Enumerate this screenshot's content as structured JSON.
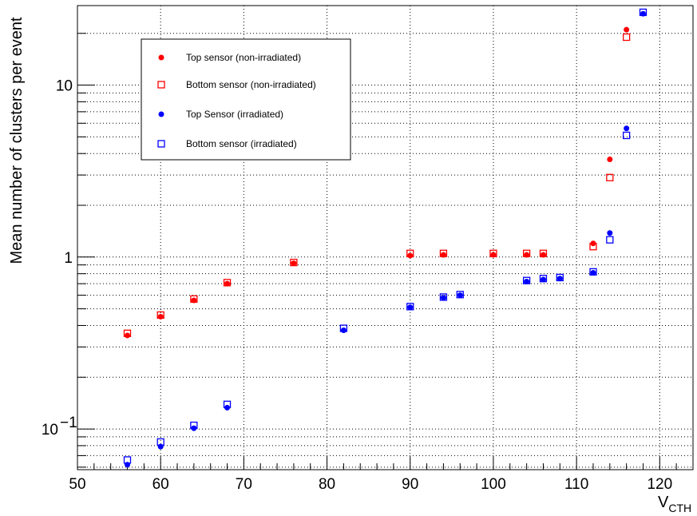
{
  "chart_data": {
    "type": "scatter",
    "title": "",
    "xlabel": "V",
    "xlabel_subscript": "CTH",
    "ylabel": "Mean number of clusters per event",
    "xlim": [
      50,
      124
    ],
    "ylim": [
      0.058,
      29
    ],
    "yscale": "log",
    "grid": true,
    "legend_position": "top-left",
    "x_ticks": [
      {
        "value": 50,
        "label": "50"
      },
      {
        "value": 60,
        "label": "60"
      },
      {
        "value": 70,
        "label": "70"
      },
      {
        "value": 80,
        "label": "80"
      },
      {
        "value": 90,
        "label": "90"
      },
      {
        "value": 100,
        "label": "100"
      },
      {
        "value": 110,
        "label": "110"
      },
      {
        "value": 120,
        "label": "120"
      }
    ],
    "y_ticks": [
      {
        "value": 0.1,
        "label": "10",
        "exponent": "−1"
      },
      {
        "value": 1,
        "label": "1",
        "exponent": ""
      },
      {
        "value": 10,
        "label": "10",
        "exponent": ""
      }
    ],
    "series": [
      {
        "name": "Top sensor (non-irradiated)",
        "color": "#ff0000",
        "marker": "filled-circle",
        "points": [
          [
            56,
            0.35
          ],
          [
            60,
            0.45
          ],
          [
            64,
            0.56
          ],
          [
            68,
            0.7
          ],
          [
            76,
            0.92
          ],
          [
            90,
            1.02
          ],
          [
            94,
            1.03
          ],
          [
            100,
            1.03
          ],
          [
            104,
            1.03
          ],
          [
            106,
            1.03
          ],
          [
            112,
            1.2
          ],
          [
            114,
            3.7
          ],
          [
            116,
            21.0
          ]
        ]
      },
      {
        "name": "Bottom sensor (non-irradiated)",
        "color": "#ff0000",
        "marker": "open-square",
        "points": [
          [
            56,
            0.36
          ],
          [
            60,
            0.46
          ],
          [
            64,
            0.57
          ],
          [
            68,
            0.71
          ],
          [
            76,
            0.93
          ],
          [
            90,
            1.05
          ],
          [
            94,
            1.05
          ],
          [
            100,
            1.05
          ],
          [
            104,
            1.05
          ],
          [
            106,
            1.05
          ],
          [
            112,
            1.15
          ],
          [
            114,
            2.9
          ],
          [
            116,
            19.0
          ]
        ]
      },
      {
        "name": "Top Sensor (irradiated)",
        "color": "#0000ff",
        "marker": "filled-circle",
        "points": [
          [
            56,
            0.062
          ],
          [
            60,
            0.079
          ],
          [
            64,
            0.101
          ],
          [
            68,
            0.133
          ],
          [
            82,
            0.375
          ],
          [
            90,
            0.51
          ],
          [
            94,
            0.58
          ],
          [
            96,
            0.6
          ],
          [
            104,
            0.72
          ],
          [
            106,
            0.74
          ],
          [
            108,
            0.75
          ],
          [
            112,
            0.81
          ],
          [
            114,
            1.38
          ],
          [
            116,
            5.6
          ],
          [
            118,
            26.0
          ]
        ]
      },
      {
        "name": "Bottom sensor (irradiated)",
        "color": "#0000ff",
        "marker": "open-square",
        "points": [
          [
            56,
            0.066
          ],
          [
            60,
            0.084
          ],
          [
            64,
            0.105
          ],
          [
            68,
            0.139
          ],
          [
            82,
            0.385
          ],
          [
            90,
            0.515
          ],
          [
            94,
            0.585
          ],
          [
            96,
            0.605
          ],
          [
            104,
            0.73
          ],
          [
            106,
            0.75
          ],
          [
            108,
            0.76
          ],
          [
            112,
            0.82
          ],
          [
            114,
            1.26
          ],
          [
            116,
            5.1
          ],
          [
            118,
            26.5
          ]
        ]
      }
    ]
  }
}
